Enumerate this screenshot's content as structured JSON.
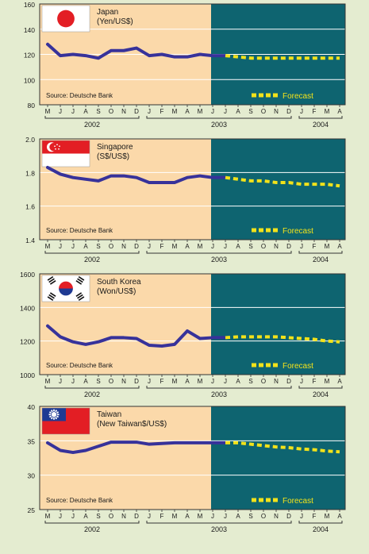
{
  "colors": {
    "page_bg": "#e4ecd0",
    "history_bg": "#fbd9aa",
    "forecast_bg": "#0e6470",
    "line": "#37329a",
    "forecast_line": "#f2e21a",
    "grid": "#ffffff",
    "text": "#1a1a1a"
  },
  "months": [
    "M",
    "J",
    "J",
    "A",
    "S",
    "O",
    "N",
    "D",
    "J",
    "F",
    "M",
    "A",
    "M",
    "J",
    "J",
    "A",
    "S",
    "O",
    "N",
    "D",
    "J",
    "F",
    "M",
    "A"
  ],
  "years": [
    {
      "label": "2002",
      "from": 0,
      "to": 7
    },
    {
      "label": "2003",
      "from": 8,
      "to": 19
    },
    {
      "label": "2004",
      "from": 20,
      "to": 23
    }
  ],
  "source_text": "Source: Deutsche Bank",
  "legend_label": "Forecast",
  "forecast_start_index": 14,
  "chart_data": [
    {
      "type": "line",
      "country": "Japan",
      "unit": "(Yen/US$)",
      "flag": "japan-flag",
      "ylim": [
        80,
        160
      ],
      "yticks": [
        80,
        100,
        120,
        140,
        160
      ],
      "series": [
        {
          "name": "Actual",
          "start": 0,
          "values": [
            128,
            119,
            120,
            119,
            117,
            123,
            123,
            125,
            119,
            120,
            118,
            118,
            120,
            119,
            119
          ]
        },
        {
          "name": "Forecast",
          "start": 14,
          "values": [
            119,
            118,
            117,
            117,
            117,
            117,
            117,
            117,
            117,
            117
          ]
        }
      ]
    },
    {
      "type": "line",
      "country": "Singapore",
      "unit": "(S$/US$)",
      "flag": "singapore-flag",
      "ylim": [
        1.4,
        2.0
      ],
      "yticks": [
        1.4,
        1.6,
        1.8,
        2.0
      ],
      "series": [
        {
          "name": "Actual",
          "start": 0,
          "values": [
            1.83,
            1.79,
            1.77,
            1.76,
            1.75,
            1.78,
            1.78,
            1.77,
            1.74,
            1.74,
            1.74,
            1.77,
            1.78,
            1.77,
            1.77
          ]
        },
        {
          "name": "Forecast",
          "start": 14,
          "values": [
            1.77,
            1.76,
            1.75,
            1.75,
            1.74,
            1.74,
            1.73,
            1.73,
            1.73,
            1.72
          ]
        }
      ]
    },
    {
      "type": "line",
      "country": "South Korea",
      "unit": "(Won/US$)",
      "flag": "south-korea-flag",
      "ylim": [
        1000,
        1600
      ],
      "yticks": [
        1000,
        1200,
        1400,
        1600
      ],
      "series": [
        {
          "name": "Actual",
          "start": 0,
          "values": [
            1290,
            1225,
            1195,
            1180,
            1195,
            1220,
            1220,
            1215,
            1175,
            1170,
            1180,
            1260,
            1215,
            1220,
            1220
          ]
        },
        {
          "name": "Forecast",
          "start": 14,
          "values": [
            1220,
            1225,
            1225,
            1225,
            1225,
            1220,
            1215,
            1210,
            1200,
            1195
          ]
        }
      ]
    },
    {
      "type": "line",
      "country": "Taiwan",
      "unit": "(New Taiwan$/US$)",
      "flag": "taiwan-flag",
      "ylim": [
        25,
        40
      ],
      "yticks": [
        25,
        30,
        35,
        40
      ],
      "series": [
        {
          "name": "Actual",
          "start": 0,
          "values": [
            34.7,
            33.6,
            33.3,
            33.6,
            34.2,
            34.8,
            34.8,
            34.8,
            34.5,
            34.6,
            34.7,
            34.7,
            34.7,
            34.7,
            34.7
          ]
        },
        {
          "name": "Forecast",
          "start": 14,
          "values": [
            34.7,
            34.7,
            34.5,
            34.3,
            34.1,
            34.0,
            33.8,
            33.7,
            33.5,
            33.4
          ]
        }
      ]
    }
  ]
}
